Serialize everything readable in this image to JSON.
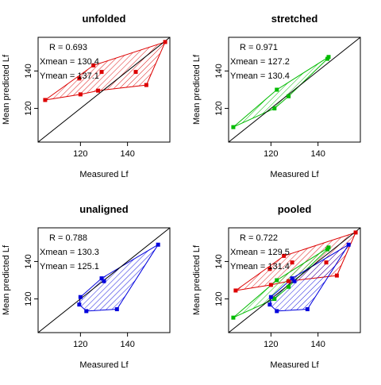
{
  "chart_data": [
    {
      "type": "scatter",
      "title": "unfolded",
      "xlabel": "Measured Lf",
      "ylabel": "Mean predicted Lf",
      "xlim": [
        102,
        158
      ],
      "ylim": [
        102,
        158
      ],
      "xticks": [
        120,
        140
      ],
      "yticks": [
        120,
        140
      ],
      "grid": false,
      "identity_line": true,
      "stats": [
        "R = 0.693",
        "Xmean = 130.4",
        "Ymean = 137.1"
      ],
      "series": [
        {
          "color": "#dd0000",
          "points": [
            [
              105,
              124.5
            ],
            [
              119.5,
              136
            ],
            [
              120,
              127.5
            ],
            [
              125.5,
              143
            ],
            [
              127.5,
              129.5
            ],
            [
              129,
              139.5
            ],
            [
              143.5,
              139.5
            ],
            [
              148,
              132.5
            ],
            [
              156,
              155.5
            ]
          ],
          "hull": [
            [
              105,
              124.5
            ],
            [
              125.5,
              143
            ],
            [
              156,
              155.5
            ],
            [
              148,
              132.5
            ],
            [
              127.5,
              129.5
            ],
            [
              120,
              127.5
            ]
          ]
        }
      ]
    },
    {
      "type": "scatter",
      "title": "stretched",
      "xlabel": "Measured Lf",
      "ylabel": "Mean predicted Lf",
      "xlim": [
        102,
        158
      ],
      "ylim": [
        102,
        158
      ],
      "xticks": [
        120,
        140
      ],
      "yticks": [
        120,
        140
      ],
      "grid": false,
      "identity_line": true,
      "stats": [
        "R = 0.971",
        "Xmean = 127.2",
        "Ymean = 130.4"
      ],
      "series": [
        {
          "color": "#00bb00",
          "points": [
            [
              104,
              110
            ],
            [
              121.5,
              120
            ],
            [
              122.5,
              130
            ],
            [
              127.5,
              126.5
            ],
            [
              144,
              146.5
            ],
            [
              144.5,
              147.5
            ]
          ],
          "hull": [
            [
              104,
              110
            ],
            [
              122.5,
              130
            ],
            [
              144.5,
              147.5
            ],
            [
              144,
              146.5
            ],
            [
              127.5,
              126.5
            ],
            [
              121.5,
              120
            ]
          ]
        }
      ]
    },
    {
      "type": "scatter",
      "title": "unaligned",
      "xlabel": "Measured Lf",
      "ylabel": "Mean predicted Lf",
      "xlim": [
        102,
        158
      ],
      "ylim": [
        102,
        158
      ],
      "xticks": [
        120,
        140
      ],
      "yticks": [
        120,
        140
      ],
      "grid": false,
      "identity_line": true,
      "stats": [
        "R = 0.788",
        "Xmean = 130.3",
        "Ymean = 125.1"
      ],
      "series": [
        {
          "color": "#0000dd",
          "points": [
            [
              119.5,
              117
            ],
            [
              120,
              121
            ],
            [
              122.5,
              113.5
            ],
            [
              129,
              131
            ],
            [
              130,
              129.5
            ],
            [
              135.5,
              114.5
            ],
            [
              153,
              149
            ]
          ],
          "hull": [
            [
              119.5,
              117
            ],
            [
              122.5,
              113.5
            ],
            [
              135.5,
              114.5
            ],
            [
              153,
              149
            ],
            [
              129,
              131
            ],
            [
              120,
              121
            ]
          ]
        }
      ]
    },
    {
      "type": "scatter",
      "title": "pooled",
      "xlabel": "Measured Lf",
      "ylabel": "Mean predicted Lf",
      "xlim": [
        102,
        158
      ],
      "ylim": [
        102,
        158
      ],
      "xticks": [
        120,
        140
      ],
      "yticks": [
        120,
        140
      ],
      "grid": false,
      "identity_line": true,
      "stats": [
        "R = 0.722",
        "Xmean = 129.5",
        "Ymean = 131.4"
      ],
      "series": [
        {
          "color": "#dd0000",
          "points": [
            [
              105,
              124.5
            ],
            [
              119.5,
              136
            ],
            [
              120,
              127.5
            ],
            [
              125.5,
              143
            ],
            [
              127.5,
              129.5
            ],
            [
              129,
              139.5
            ],
            [
              143.5,
              139.5
            ],
            [
              148,
              132.5
            ],
            [
              156,
              155.5
            ]
          ],
          "hull": [
            [
              105,
              124.5
            ],
            [
              125.5,
              143
            ],
            [
              156,
              155.5
            ],
            [
              148,
              132.5
            ],
            [
              127.5,
              129.5
            ],
            [
              120,
              127.5
            ]
          ]
        },
        {
          "color": "#00bb00",
          "points": [
            [
              104,
              110
            ],
            [
              121.5,
              120
            ],
            [
              122.5,
              130
            ],
            [
              127.5,
              126.5
            ],
            [
              144,
              146.5
            ],
            [
              144.5,
              147.5
            ]
          ],
          "hull": [
            [
              104,
              110
            ],
            [
              122.5,
              130
            ],
            [
              144.5,
              147.5
            ],
            [
              144,
              146.5
            ],
            [
              127.5,
              126.5
            ],
            [
              121.5,
              120
            ]
          ]
        },
        {
          "color": "#0000dd",
          "points": [
            [
              119.5,
              117
            ],
            [
              120,
              121
            ],
            [
              122.5,
              113.5
            ],
            [
              129,
              131
            ],
            [
              130,
              129.5
            ],
            [
              135.5,
              114.5
            ],
            [
              153,
              149
            ]
          ],
          "hull": [
            [
              119.5,
              117
            ],
            [
              122.5,
              113.5
            ],
            [
              135.5,
              114.5
            ],
            [
              153,
              149
            ],
            [
              129,
              131
            ],
            [
              120,
              121
            ]
          ]
        }
      ]
    }
  ]
}
